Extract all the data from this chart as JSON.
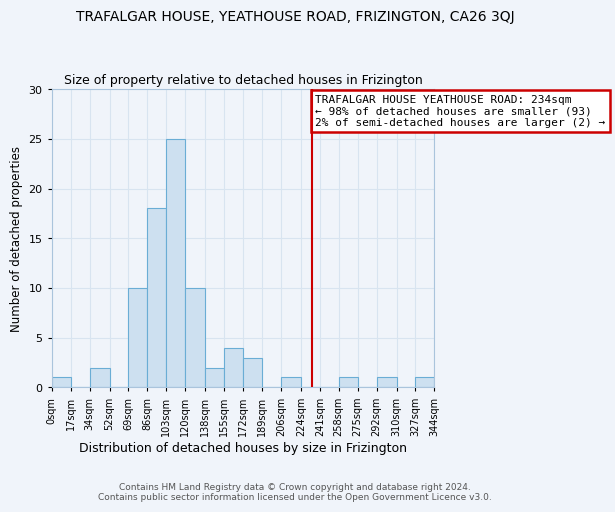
{
  "title": "TRAFALGAR HOUSE, YEATHOUSE ROAD, FRIZINGTON, CA26 3QJ",
  "subtitle": "Size of property relative to detached houses in Frizington",
  "xlabel": "Distribution of detached houses by size in Frizington",
  "ylabel": "Number of detached properties",
  "bar_color": "#cde0f0",
  "bar_edge_color": "#6aadd5",
  "bins": [
    0,
    17,
    34,
    52,
    69,
    86,
    103,
    120,
    138,
    155,
    172,
    189,
    206,
    224,
    241,
    258,
    275,
    292,
    310,
    327,
    344
  ],
  "bin_labels": [
    "0sqm",
    "17sqm",
    "34sqm",
    "52sqm",
    "69sqm",
    "86sqm",
    "103sqm",
    "120sqm",
    "138sqm",
    "155sqm",
    "172sqm",
    "189sqm",
    "206sqm",
    "224sqm",
    "241sqm",
    "258sqm",
    "275sqm",
    "292sqm",
    "310sqm",
    "327sqm",
    "344sqm"
  ],
  "counts": [
    1,
    0,
    2,
    0,
    10,
    18,
    25,
    10,
    2,
    4,
    3,
    0,
    1,
    0,
    0,
    1,
    0,
    1,
    0,
    1
  ],
  "ylim": [
    0,
    30
  ],
  "yticks": [
    0,
    5,
    10,
    15,
    20,
    25,
    30
  ],
  "vline_x": 234,
  "vline_color": "#cc0000",
  "annotation_text": "TRAFALGAR HOUSE YEATHOUSE ROAD: 234sqm\n← 98% of detached houses are smaller (93)\n2% of semi-detached houses are larger (2) →",
  "annotation_box_color": "#ffffff",
  "annotation_box_edge": "#cc0000",
  "grid_color": "#d8e4f0",
  "bg_color": "#f0f4fa",
  "footer_line1": "Contains HM Land Registry data © Crown copyright and database right 2024.",
  "footer_line2": "Contains public sector information licensed under the Open Government Licence v3.0.",
  "title_fontsize": 10,
  "subtitle_fontsize": 9,
  "annot_fontsize": 8
}
